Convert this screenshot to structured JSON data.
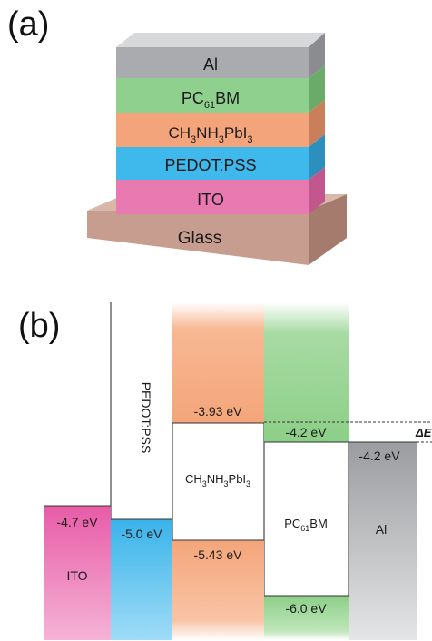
{
  "panel_a": {
    "label": "(a)",
    "layers": [
      {
        "name": "Al",
        "base": "Al",
        "sub": "",
        "mid": "",
        "sub2": "",
        "tail": "",
        "color": "#a9abae"
      },
      {
        "name": "PC61BM",
        "base": "PC",
        "sub": "61",
        "mid": "BM",
        "sub2": "",
        "tail": "",
        "color": "#8fd08f"
      },
      {
        "name": "CH3NH3PbI3",
        "base": "CH",
        "sub": "3",
        "mid": "NH",
        "sub2": "3",
        "tail": "PbI",
        "sub3": "3",
        "color": "#f3a47b"
      },
      {
        "name": "PEDOT:PSS",
        "base": "PEDOT:PSS",
        "sub": "",
        "mid": "",
        "sub2": "",
        "tail": "",
        "color": "#3fb8ec"
      },
      {
        "name": "ITO",
        "base": "ITO",
        "sub": "",
        "mid": "",
        "sub2": "",
        "tail": "",
        "color": "#e87ab1"
      },
      {
        "name": "Glass",
        "base": "Glass",
        "sub": "",
        "mid": "",
        "sub2": "",
        "tail": "",
        "color": "#c79d8f"
      }
    ]
  },
  "panel_b": {
    "label": "(b)",
    "ito": {
      "name": "ITO",
      "level": "-4.7 eV",
      "color": "#e85ba7"
    },
    "pedot": {
      "name": "PEDOT:PSS",
      "level": "-5.0 eV",
      "color": "#39b3ea"
    },
    "perovskite": {
      "name": "CH3NH3PbI3",
      "lumo": "-3.93 eV",
      "homo": "-5.43 eV",
      "color": "#f4a57a"
    },
    "pcbm": {
      "name": "PC61BM",
      "lumo": "-4.2 eV",
      "homo": "-6.0 eV",
      "color": "#8ccf87"
    },
    "al": {
      "name": "Al",
      "level": "-4.2 eV",
      "color": "#a0a2a5"
    },
    "delta_label": "ΔE"
  }
}
